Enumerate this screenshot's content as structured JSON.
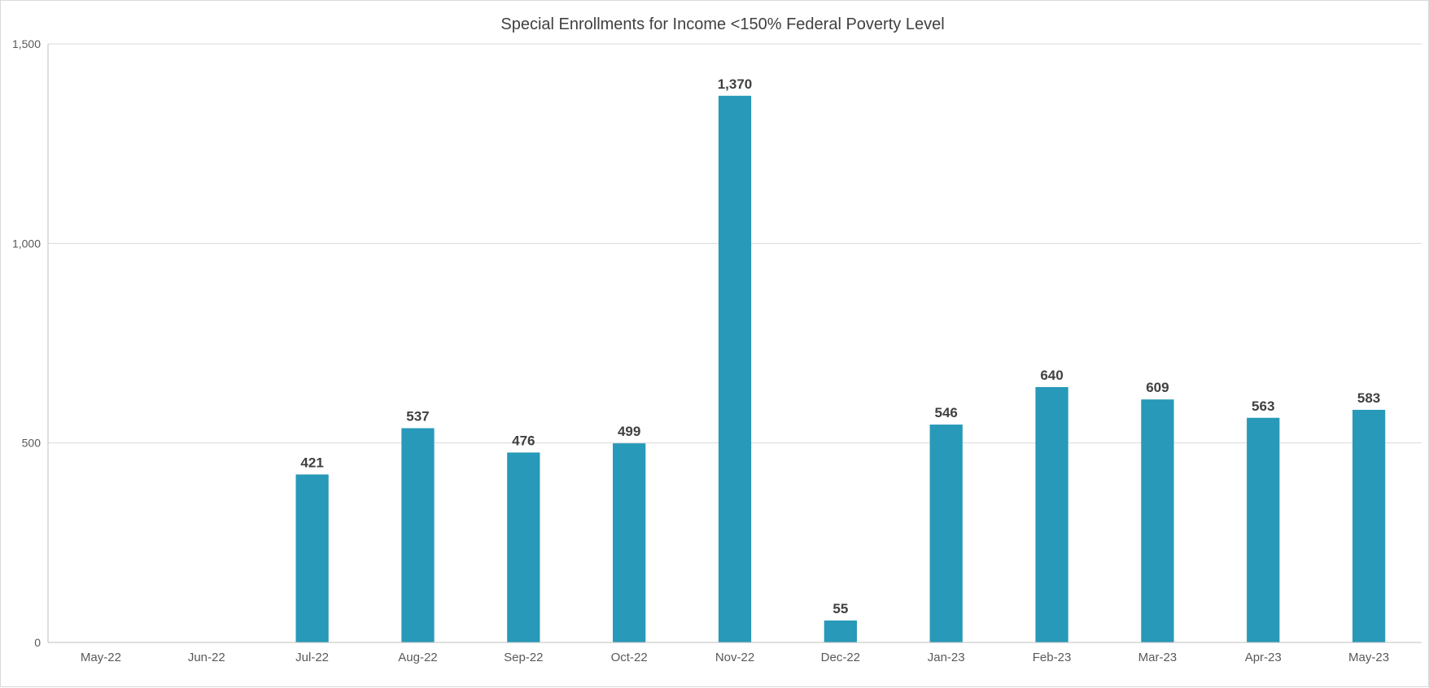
{
  "chart_data": {
    "type": "bar",
    "title": "Special Enrollments for Income <150% Federal Poverty Level",
    "xlabel": "",
    "ylabel": "",
    "categories": [
      "May-22",
      "Jun-22",
      "Jul-22",
      "Aug-22",
      "Sep-22",
      "Oct-22",
      "Nov-22",
      "Dec-22",
      "Jan-23",
      "Feb-23",
      "Mar-23",
      "Apr-23",
      "May-23"
    ],
    "values": [
      null,
      null,
      421,
      537,
      476,
      499,
      1370,
      55,
      546,
      640,
      609,
      563,
      583
    ],
    "data_labels": [
      "",
      "",
      "421",
      "537",
      "476",
      "499",
      "1,370",
      "55",
      "546",
      "640",
      "609",
      "563",
      "583"
    ],
    "ylim": [
      0,
      1500
    ],
    "yticks": [
      0,
      500,
      1000,
      1500
    ],
    "ytick_labels": [
      "0",
      "500",
      "1,000",
      "1,500"
    ],
    "grid": true,
    "legend": false,
    "colors": {
      "bar": "#2899B8",
      "gridline": "#d9d9d9",
      "axis": "#bfbfbf",
      "text": "#595959",
      "title": "#404040"
    }
  }
}
